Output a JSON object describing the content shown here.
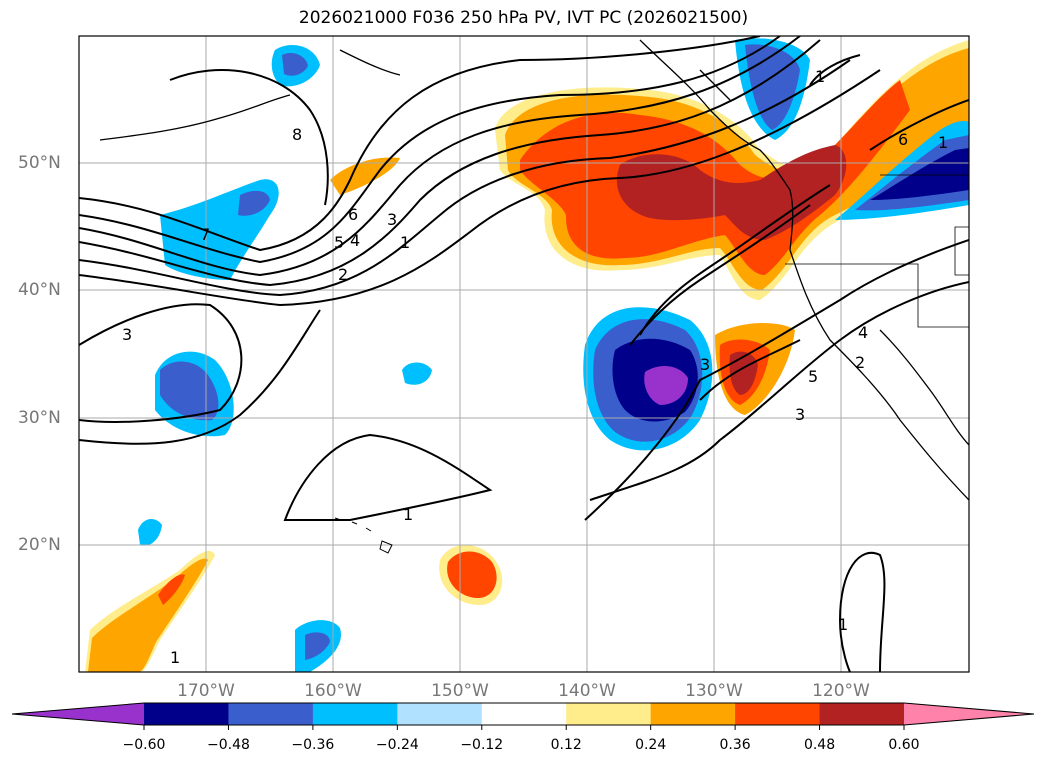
{
  "title": "2026021000 F036 250 hPa PV, IVT PC (2026021500)",
  "map": {
    "lat_labels": [
      {
        "text": "50°N",
        "value": 50
      },
      {
        "text": "40°N",
        "value": 40
      },
      {
        "text": "30°N",
        "value": 30
      },
      {
        "text": "20°N",
        "value": 20
      }
    ],
    "lon_labels": [
      {
        "text": "170°W",
        "value": -170
      },
      {
        "text": "160°W",
        "value": -160
      },
      {
        "text": "150°W",
        "value": -150
      },
      {
        "text": "140°W",
        "value": -140
      },
      {
        "text": "130°W",
        "value": -130
      },
      {
        "text": "120°W",
        "value": -120
      }
    ],
    "extent": {
      "lon_min": -180,
      "lon_max": -110,
      "lat_min": 10,
      "lat_max": 60
    },
    "grid": true,
    "contour_labels": [
      "8",
      "7",
      "6",
      "5",
      "4",
      "3",
      "2",
      "1",
      "3",
      "1",
      "1",
      "1",
      "6",
      "1",
      "5",
      "4",
      "3",
      "2",
      "3",
      "1"
    ]
  },
  "colorbar": {
    "ticks": [
      "−0.60",
      "−0.48",
      "−0.36",
      "−0.24",
      "−0.12",
      "0.12",
      "0.24",
      "0.36",
      "0.48",
      "0.60"
    ],
    "colors": [
      "#9932cc",
      "#00008b",
      "#3a5fcd",
      "#00bfff",
      "#b0e2ff",
      "#ffffff",
      "#ffec8b",
      "#ffa500",
      "#ff4500",
      "#b22222",
      "#ff82ab"
    ]
  }
}
